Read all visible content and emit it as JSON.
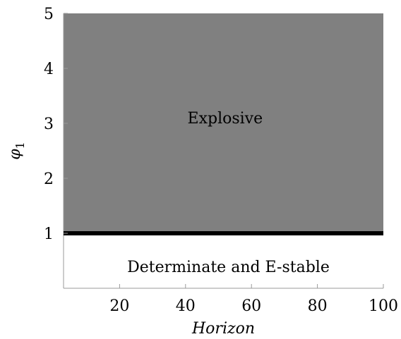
{
  "chart_data": {
    "type": "area",
    "title": "",
    "xlabel": "Horizon",
    "ylabel": "φ1",
    "ylabel_base": "φ",
    "ylabel_subscript": "1",
    "xlim": [
      3,
      100
    ],
    "ylim": [
      0,
      5
    ],
    "xticks": [
      20,
      40,
      60,
      80,
      100
    ],
    "yticks": [
      1,
      2,
      3,
      4,
      5
    ],
    "grid": false,
    "regions": [
      {
        "name": "Explosive",
        "label": "Explosive",
        "y_from": 1,
        "y_to": 5,
        "color": "#808080",
        "label_pos": {
          "x": 52,
          "y": 3.1
        }
      },
      {
        "name": "Determinate and E-stable",
        "label": "Determinate and E-stable",
        "y_from": 0,
        "y_to": 1,
        "color": "#ffffff",
        "label_pos": {
          "x": 53,
          "y": 0.4
        }
      }
    ],
    "boundary": {
      "y": 1,
      "color": "#000000"
    }
  }
}
